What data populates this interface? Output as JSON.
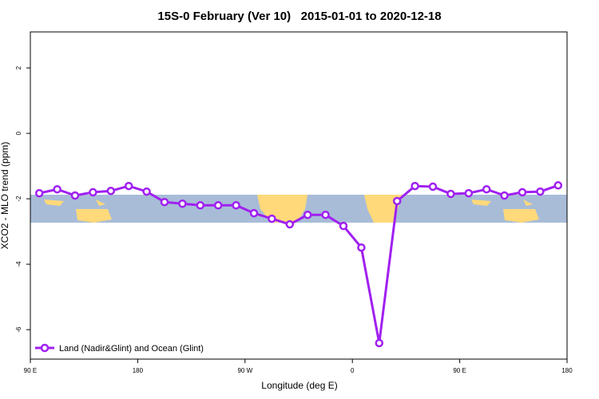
{
  "chart_data": {
    "type": "line",
    "title": "15S-0 February (Ver 10)   2015-01-01 to 2020-12-18",
    "x_label": "Longitude (deg E)",
    "y_label": "XCO2 - MLO trend (ppm)",
    "x": [
      97.5,
      112.5,
      127.5,
      142.5,
      157.5,
      172.5,
      187.5,
      202.5,
      217.5,
      232.5,
      247.5,
      262.5,
      277.5,
      292.5,
      307.5,
      322.5,
      337.5,
      352.5,
      367.5,
      382.5,
      397.5,
      412.5,
      427.5,
      442.5,
      457.5,
      472.5,
      487.5,
      502.5,
      517.5,
      532.5
    ],
    "series": [
      {
        "name": "Land (Nadir&Glint) and Ocean (Glint)",
        "color": "#a020f0",
        "values": [
          -1.83,
          -1.71,
          -1.9,
          -1.8,
          -1.76,
          -1.61,
          -1.78,
          -2.1,
          -2.15,
          -2.2,
          -2.2,
          -2.2,
          -2.44,
          -2.61,
          -2.78,
          -2.49,
          -2.49,
          -2.83,
          -3.49,
          -6.41,
          -2.07,
          -1.61,
          -1.63,
          -1.85,
          -1.83,
          -1.71,
          -1.9,
          -1.8,
          -1.78,
          -1.59
        ]
      }
    ],
    "xlim": [
      90,
      540
    ],
    "xticks": [
      {
        "value": 90,
        "label": "90 E"
      },
      180,
      {
        "value": 270,
        "label": "90 W"
      },
      {
        "value": 360,
        "label": "0"
      },
      {
        "value": 450,
        "label": "90 E"
      },
      {
        "value": 540,
        "label": "180"
      }
    ],
    "ylim": [
      -6.9,
      3.1
    ],
    "yticks": [
      -6,
      -4,
      -2,
      0,
      2
    ],
    "grid": false,
    "legend": "bottomleft"
  }
}
